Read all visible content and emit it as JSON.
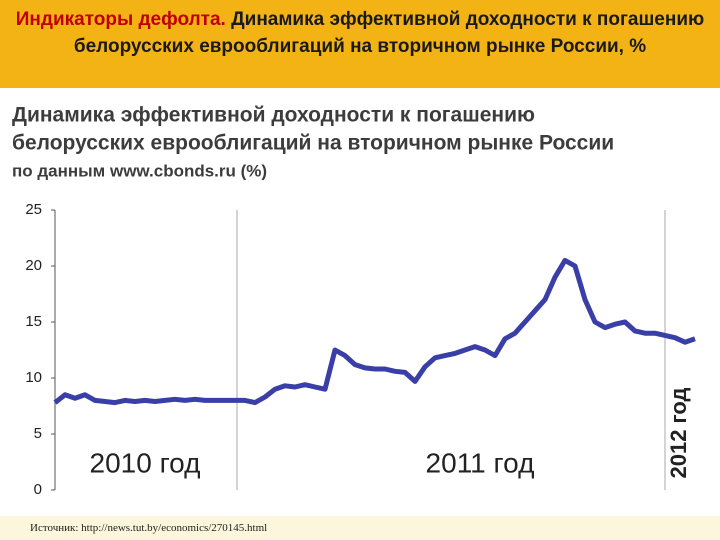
{
  "header": {
    "label": "Индикаторы дефолта.",
    "title": "Динамика эффективной доходности к погашению белорусских еврооблигаций на вторичном рынке России, %"
  },
  "chart_data": {
    "type": "line",
    "title_lines": [
      "Динамика эффективной доходности к погашению",
      "белорусских еврооблигаций на вторичном рынке России"
    ],
    "subtitle": "по данным www.cbonds.ru (%)",
    "period_labels": [
      "2010 год",
      "2011 год",
      "2012 год"
    ],
    "color": "#3a3fa8",
    "values": [
      7.8,
      8.5,
      8.2,
      8.5,
      8.0,
      7.9,
      7.8,
      8.0,
      7.9,
      8.0,
      7.9,
      8.0,
      8.1,
      8.0,
      8.1,
      8.0,
      8.0,
      8.0,
      8.0,
      8.0,
      7.8,
      8.3,
      9.0,
      9.3,
      9.2,
      9.4,
      9.2,
      9.0,
      12.5,
      12.0,
      11.2,
      10.9,
      10.8,
      10.8,
      10.6,
      10.5,
      9.7,
      11.0,
      11.8,
      12.0,
      12.2,
      12.5,
      12.8,
      12.5,
      12.0,
      13.5,
      14.0,
      15.0,
      16.0,
      17.0,
      19.0,
      20.5,
      20.0,
      17.0,
      15.0,
      14.5,
      14.8,
      15.0,
      14.2,
      14.0,
      14.0,
      13.8,
      13.6,
      13.2,
      13.5
    ],
    "ylim": [
      0,
      25
    ],
    "yticks": [
      0,
      5,
      10,
      15,
      20,
      25
    ]
  },
  "source": "Источник: http://news.tut.by/economics/270145.html"
}
